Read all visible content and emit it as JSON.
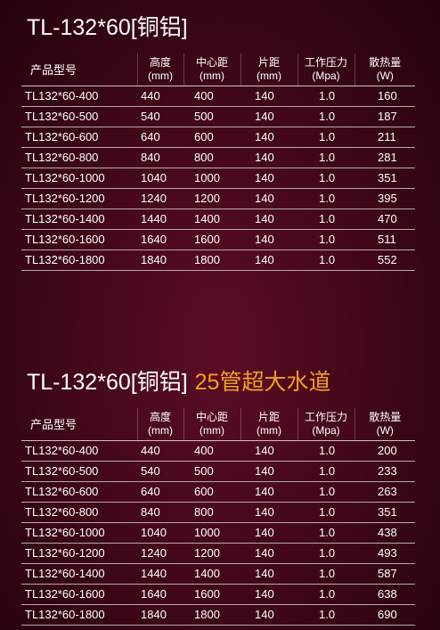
{
  "sections": [
    {
      "title": "TL-132*60[铜铝]",
      "subtitle": "",
      "headers": [
        {
          "label": "产品型号",
          "unit": ""
        },
        {
          "label": "高度",
          "unit": "(mm)"
        },
        {
          "label": "中心距",
          "unit": "(mm)"
        },
        {
          "label": "片距",
          "unit": "(mm)"
        },
        {
          "label": "工作压力",
          "unit": "(Mpa)"
        },
        {
          "label": "散热量",
          "unit": "(W)"
        }
      ],
      "rows": [
        [
          "TL132*60-400",
          "440",
          "400",
          "140",
          "1.0",
          "160"
        ],
        [
          "TL132*60-500",
          "540",
          "500",
          "140",
          "1.0",
          "187"
        ],
        [
          "TL132*60-600",
          "640",
          "600",
          "140",
          "1.0",
          "211"
        ],
        [
          "TL132*60-800",
          "840",
          "800",
          "140",
          "1.0",
          "281"
        ],
        [
          "TL132*60-1000",
          "1040",
          "1000",
          "140",
          "1.0",
          "351"
        ],
        [
          "TL132*60-1200",
          "1240",
          "1200",
          "140",
          "1.0",
          "395"
        ],
        [
          "TL132*60-1400",
          "1440",
          "1400",
          "140",
          "1.0",
          "470"
        ],
        [
          "TL132*60-1600",
          "1640",
          "1600",
          "140",
          "1.0",
          "511"
        ],
        [
          "TL132*60-1800",
          "1840",
          "1800",
          "140",
          "1.0",
          "552"
        ]
      ]
    },
    {
      "title": "TL-132*60[铜铝]",
      "subtitle": "25管超大水道",
      "headers": [
        {
          "label": "产品型号",
          "unit": ""
        },
        {
          "label": "高度",
          "unit": "(mm)"
        },
        {
          "label": "中心距",
          "unit": "(mm)"
        },
        {
          "label": "片距",
          "unit": "(mm)"
        },
        {
          "label": "工作压力",
          "unit": "(Mpa)"
        },
        {
          "label": "散热量",
          "unit": "(W)"
        }
      ],
      "rows": [
        [
          "TL132*60-400",
          "440",
          "400",
          "140",
          "1.0",
          "200"
        ],
        [
          "TL132*60-500",
          "540",
          "500",
          "140",
          "1.0",
          "233"
        ],
        [
          "TL132*60-600",
          "640",
          "600",
          "140",
          "1.0",
          "263"
        ],
        [
          "TL132*60-800",
          "840",
          "800",
          "140",
          "1.0",
          "351"
        ],
        [
          "TL132*60-1000",
          "1040",
          "1000",
          "140",
          "1.0",
          "438"
        ],
        [
          "TL132*60-1200",
          "1240",
          "1200",
          "140",
          "1.0",
          "493"
        ],
        [
          "TL132*60-1400",
          "1440",
          "1400",
          "140",
          "1.0",
          "587"
        ],
        [
          "TL132*60-1600",
          "1640",
          "1600",
          "140",
          "1.0",
          "638"
        ],
        [
          "TL132*60-1800",
          "1840",
          "1800",
          "140",
          "1.0",
          "690"
        ]
      ]
    }
  ],
  "colors": {
    "background": "#3e0717",
    "text": "#ffffff",
    "accent": "#f2a01e"
  }
}
